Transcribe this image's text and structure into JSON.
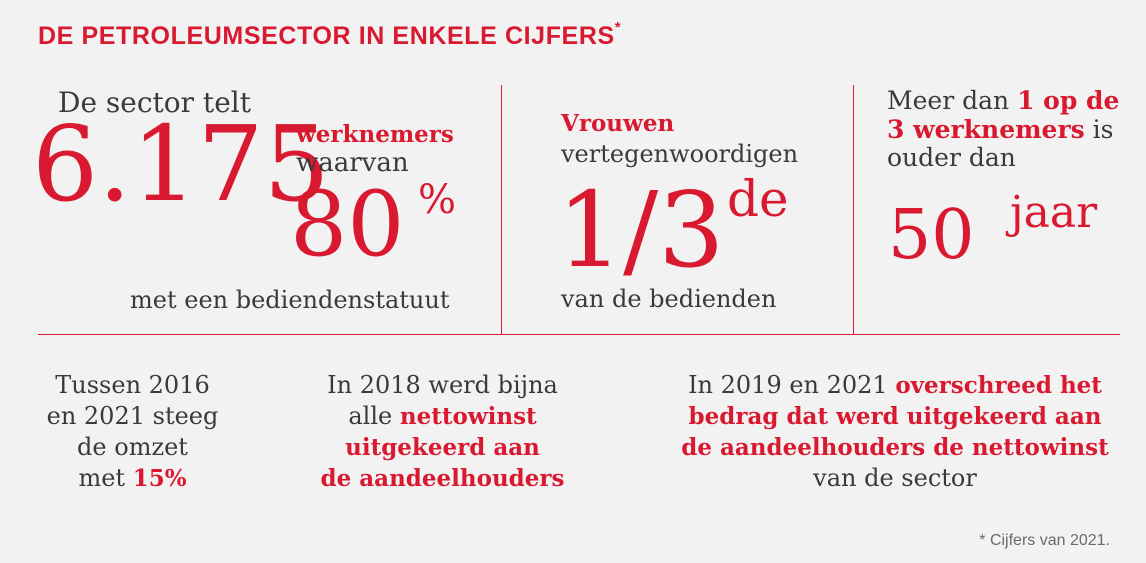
{
  "title": {
    "text": "DE PETROLEUMSECTOR IN ENKELE CIJFERS",
    "mark": "*"
  },
  "panel1": {
    "intro": "De sector telt",
    "big_number": "6.175",
    "label": "werknemers",
    "waarvan": "waarvan",
    "percent": "80",
    "percent_sign": "%",
    "footer": "met een bediendenstatuut"
  },
  "panel2": {
    "label": "Vrouwen",
    "sub": "vertegenwoordigen",
    "fraction": "1/3",
    "suffix": "de",
    "footer": "van de bedienden"
  },
  "panel3": {
    "pre": "Meer dan",
    "highlight1": "1 op de",
    "highlight2": "3 werknemers",
    "post1": "is",
    "post2": "ouder dan",
    "big_number": "50",
    "unit": "jaar"
  },
  "bottom1": {
    "line1": "Tussen 2016",
    "line2": "en 2021 steeg",
    "line3": "de omzet",
    "line4_pre": "met",
    "line4_highlight": "15%"
  },
  "bottom2": {
    "line1": "In 2018 werd bijna",
    "line2_pre": "alle",
    "line2_highlight": "nettowinst",
    "line3": "uitgekeerd aan",
    "line4": "de aandeelhouders"
  },
  "bottom3": {
    "line1_pre": "In 2019 en 2021",
    "line1_highlight": "overschreed het",
    "line2": "bedrag dat werd uitgekeerd aan",
    "line3": "de aandeelhouders de nettowinst",
    "line4": "van de sector"
  },
  "footnote": "* Cijfers van 2021.",
  "colors": {
    "accent": "#d9192f",
    "text": "#3a3a3a",
    "background": "#f2f2f3"
  }
}
